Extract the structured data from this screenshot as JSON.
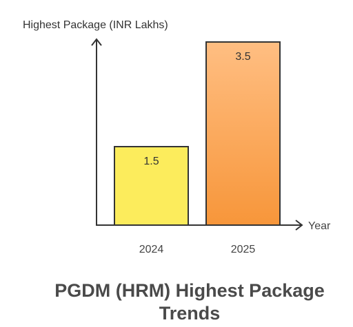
{
  "chart_data": {
    "type": "bar",
    "title": "PGDM (HRM) Highest Package Trends",
    "xlabel": "Year",
    "ylabel": "Highest Package (INR Lakhs)",
    "categories": [
      "2024",
      "2025"
    ],
    "values": [
      1.5,
      3.5
    ],
    "value_labels": [
      "1.5",
      "3.5"
    ],
    "ylim": [
      0,
      3.5
    ],
    "grid": false,
    "colors": {
      "bar_2024": "#fcec5c",
      "bar_2025_top": "#ffbe82",
      "bar_2025_bottom": "#f7963a",
      "axis": "#333333"
    }
  }
}
